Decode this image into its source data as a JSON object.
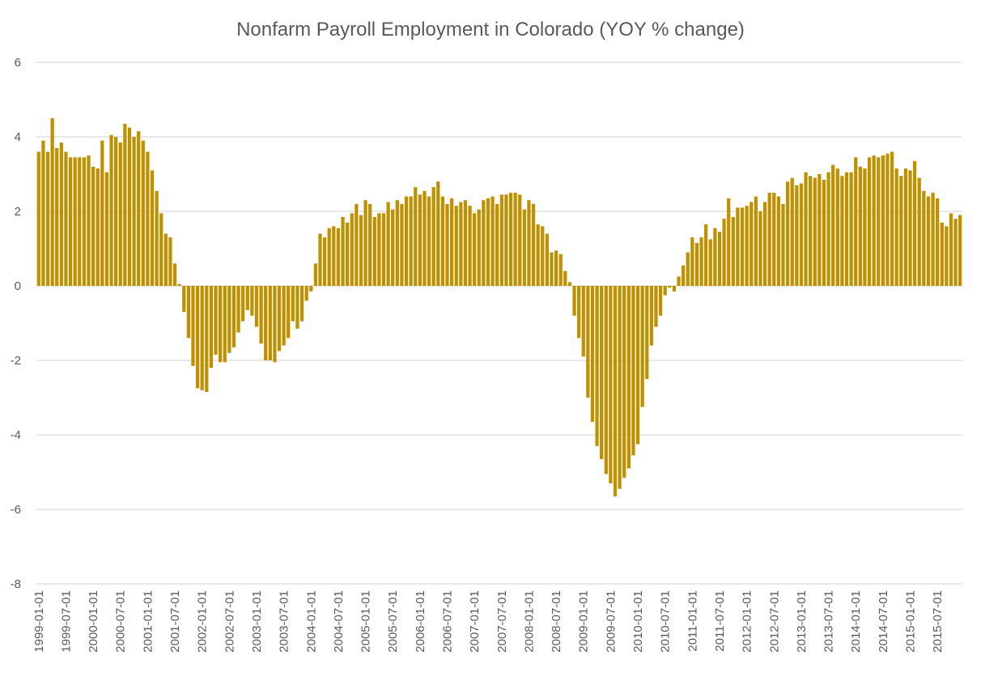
{
  "chart_data": {
    "type": "bar",
    "title": "Nonfarm Payroll Employment in Colorado (YOY % change)",
    "xlabel": "",
    "ylabel": "",
    "ylim": [
      -8,
      6
    ],
    "yticks": [
      6,
      4,
      2,
      0,
      -2,
      -4,
      -6,
      -8
    ],
    "grid": true,
    "bar_color": "#BF9000",
    "start_month": "1999-01",
    "xtick_labels": [
      "1999-01-01",
      "1999-07-01",
      "2000-01-01",
      "2000-07-01",
      "2001-01-01",
      "2001-07-01",
      "2002-01-01",
      "2002-07-01",
      "2003-01-01",
      "2003-07-01",
      "2004-01-01",
      "2004-07-01",
      "2005-01-01",
      "2005-07-01",
      "2006-01-01",
      "2006-07-01",
      "2007-01-01",
      "2007-07-01",
      "2008-01-01",
      "2008-07-01",
      "2009-01-01",
      "2009-07-01",
      "2010-01-01",
      "2010-07-01",
      "2011-01-01",
      "2011-07-01",
      "2012-01-01",
      "2012-07-01",
      "2013-01-01",
      "2013-07-01",
      "2014-01-01",
      "2014-07-01",
      "2015-01-01",
      "2015-07-01"
    ],
    "values": [
      3.6,
      3.9,
      3.6,
      4.5,
      3.7,
      3.85,
      3.6,
      3.45,
      3.45,
      3.45,
      3.45,
      3.5,
      3.2,
      3.15,
      3.9,
      3.05,
      4.05,
      4.0,
      3.85,
      4.35,
      4.25,
      4.0,
      4.15,
      3.9,
      3.6,
      3.1,
      2.55,
      1.95,
      1.4,
      1.3,
      0.6,
      0.05,
      -0.7,
      -1.4,
      -2.15,
      -2.75,
      -2.8,
      -2.85,
      -2.2,
      -1.85,
      -2.05,
      -2.05,
      -1.8,
      -1.65,
      -1.25,
      -0.95,
      -0.65,
      -0.8,
      -1.1,
      -1.55,
      -2.0,
      -2.0,
      -2.05,
      -1.75,
      -1.6,
      -1.4,
      -0.95,
      -1.15,
      -0.95,
      -0.4,
      -0.15,
      0.6,
      1.4,
      1.3,
      1.55,
      1.6,
      1.55,
      1.85,
      1.7,
      1.95,
      2.2,
      1.9,
      2.3,
      2.2,
      1.85,
      1.95,
      1.95,
      2.25,
      2.05,
      2.3,
      2.2,
      2.4,
      2.4,
      2.65,
      2.45,
      2.55,
      2.4,
      2.65,
      2.8,
      2.4,
      2.2,
      2.35,
      2.15,
      2.25,
      2.3,
      2.15,
      1.95,
      2.05,
      2.3,
      2.35,
      2.4,
      2.2,
      2.45,
      2.45,
      2.5,
      2.5,
      2.45,
      2.05,
      2.3,
      2.2,
      1.65,
      1.6,
      1.4,
      0.9,
      0.95,
      0.85,
      0.4,
      0.1,
      -0.8,
      -1.4,
      -1.9,
      -3.0,
      -3.65,
      -4.3,
      -4.65,
      -5.05,
      -5.3,
      -5.65,
      -5.45,
      -5.15,
      -4.9,
      -4.55,
      -4.25,
      -3.25,
      -2.5,
      -1.6,
      -1.1,
      -0.8,
      -0.25,
      -0.05,
      -0.15,
      0.25,
      0.55,
      0.9,
      1.3,
      1.15,
      1.3,
      1.65,
      1.25,
      1.55,
      1.45,
      1.8,
      2.35,
      1.85,
      2.1,
      2.1,
      2.15,
      2.25,
      2.4,
      2.0,
      2.25,
      2.5,
      2.5,
      2.4,
      2.2,
      2.8,
      2.9,
      2.7,
      2.75,
      3.05,
      2.95,
      2.9,
      3.0,
      2.85,
      3.05,
      3.25,
      3.15,
      2.95,
      3.05,
      3.05,
      3.45,
      3.2,
      3.15,
      3.45,
      3.5,
      3.45,
      3.5,
      3.55,
      3.6,
      3.15,
      2.95,
      3.15,
      3.1,
      3.35,
      2.9,
      2.55,
      2.4,
      2.5,
      2.35,
      1.7,
      1.6,
      1.95,
      1.8,
      1.9
    ]
  }
}
